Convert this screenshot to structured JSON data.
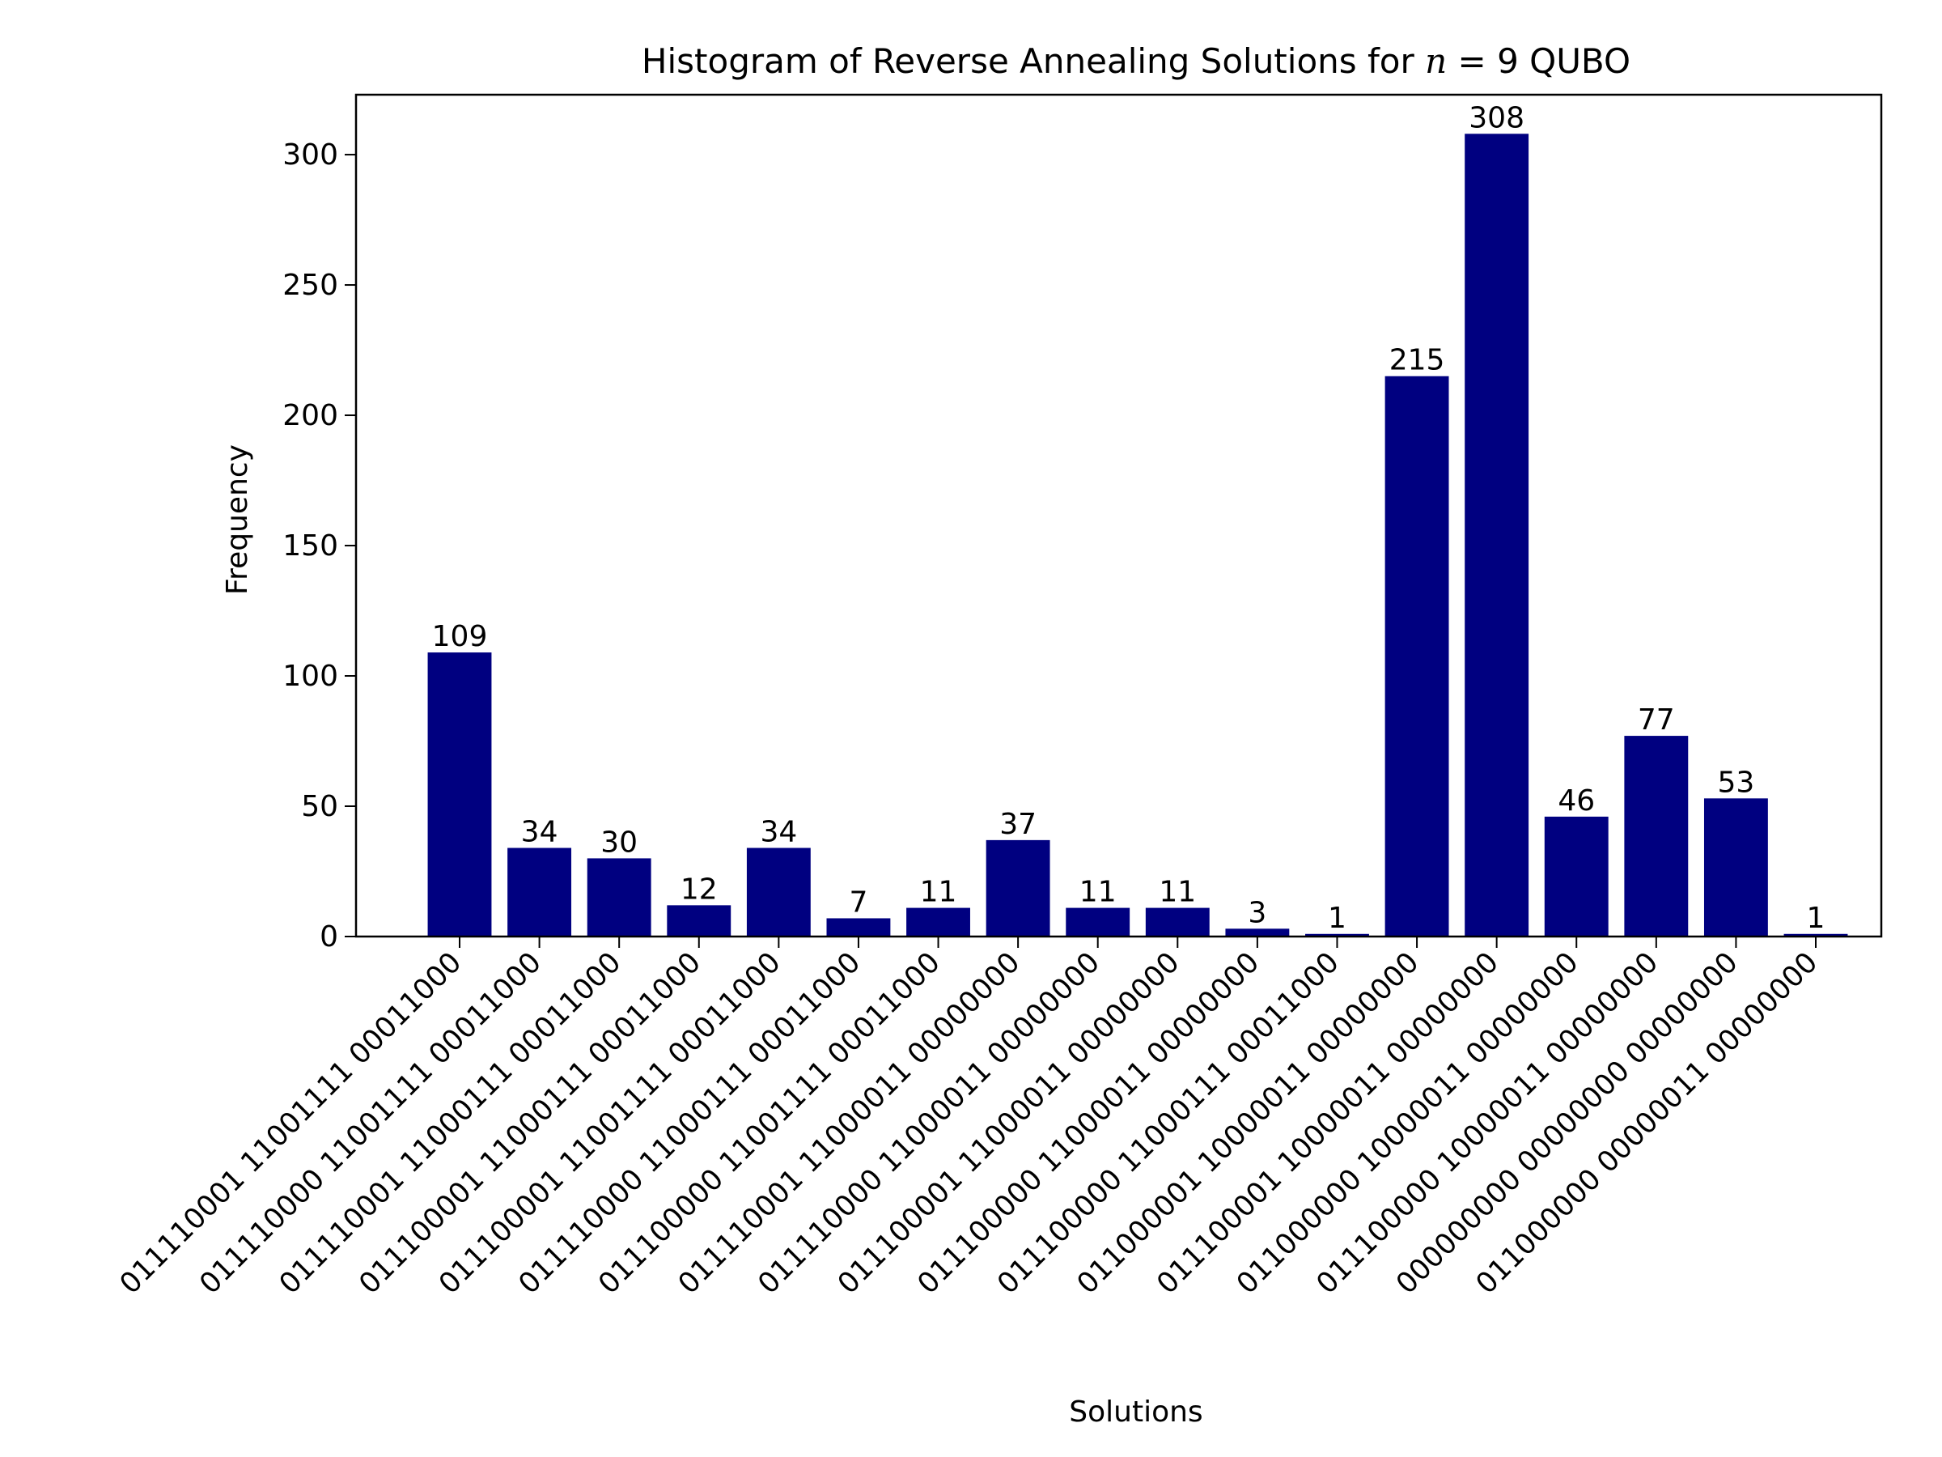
{
  "chart_data": {
    "type": "bar",
    "title": "Histogram of Reverse Annealing Solutions for n = 9 QUBO",
    "title_parts": {
      "prefix": "Histogram of Reverse Annealing Solutions for ",
      "var": "n",
      "eq": " = 9 QUBO"
    },
    "xlabel": "Solutions",
    "ylabel": "Frequency",
    "ylim": [
      0,
      323
    ],
    "yticks": [
      0,
      50,
      100,
      150,
      200,
      250,
      300
    ],
    "bar_color": "#000080",
    "categories": [
      "011110001 11001111 00011000",
      "011110000 11001111 00011000",
      "011110001 11000111 00011000",
      "011100001 11000111 00011000",
      "011100001 11001111 00011000",
      "011110000 11000111 00011000",
      "011100000 11001111 00011000",
      "011110001 11000011 00000000",
      "011110000 11000011 00000000",
      "011100001 11000011 00000000",
      "011100000 11000011 00000000",
      "011100000 11000111 00011000",
      "011000001 10000011 00000000",
      "011100001 10000011 00000000",
      "011000000 10000011 00000000",
      "011100000 10000011 00000000",
      "000000000 00000000 00000000",
      "011000000 00000011 00000000"
    ],
    "values": [
      109,
      34,
      30,
      12,
      34,
      7,
      11,
      37,
      11,
      11,
      3,
      1,
      215,
      308,
      46,
      77,
      53,
      1
    ]
  }
}
